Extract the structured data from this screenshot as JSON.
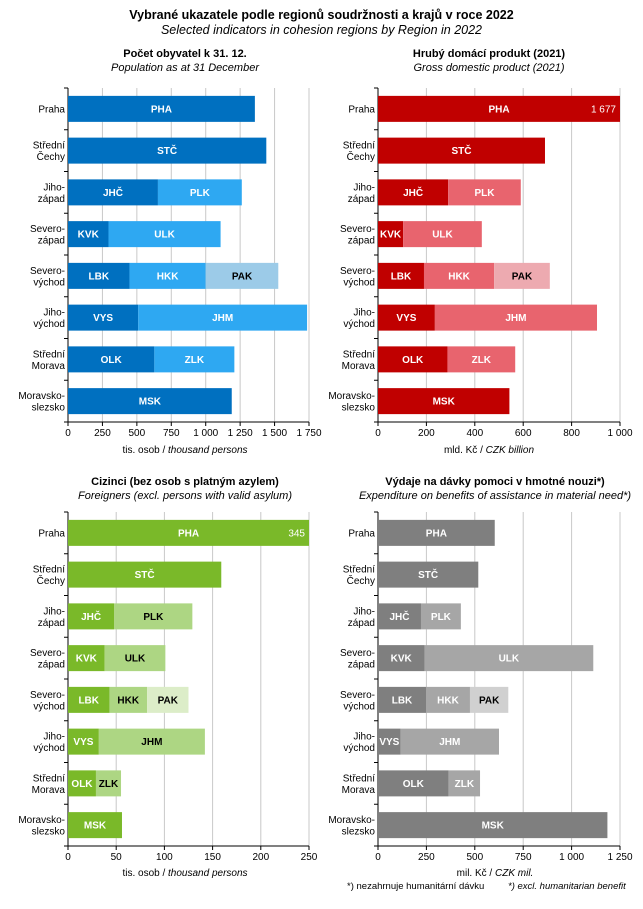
{
  "header": {
    "title": "Vybrané ukazatele podle regionů soudržnosti  a krajů v roce 2022",
    "subtitle": "Selected indicators in cohesion regions  by Region  in 2022"
  },
  "regions": [
    [
      "Praha"
    ],
    [
      "Střední",
      "Čechy"
    ],
    [
      "Jiho-",
      "západ"
    ],
    [
      "Severo-",
      "západ"
    ],
    [
      "Severo-",
      "východ"
    ],
    [
      "Jiho-",
      "východ"
    ],
    [
      "Střední",
      "Morava"
    ],
    [
      "Moravsko-",
      "slezsko"
    ]
  ],
  "chart_data": [
    {
      "type": "bar",
      "orientation": "horizontal-stacked",
      "title": "Počet obyvatel k 31. 12.",
      "subtitle": "Population as at 31 December",
      "xlabel": "tis. osob",
      "xlabel_en": "thousand persons",
      "xlim": [
        0,
        1750
      ],
      "xticks": [
        0,
        250,
        500,
        750,
        1000,
        1250,
        1500,
        1750
      ],
      "xtick_labels": [
        "0",
        "250",
        "500",
        "750",
        "1 000",
        "1 250",
        "1 500",
        "1 750"
      ],
      "colors": [
        "#0070c0",
        "#2ea8f2",
        "#9ccbe8"
      ],
      "light_text_on": [
        2
      ],
      "categories": [
        "Praha",
        "Střední Čechy",
        "Jihozápad",
        "Severozápad",
        "Severovýchod",
        "Jihovýchod",
        "Střední Morava",
        "Moravskoslezsko"
      ],
      "bars": [
        [
          {
            "label": "PHA",
            "value": 1357
          }
        ],
        [
          {
            "label": "STČ",
            "value": 1440
          }
        ],
        [
          {
            "label": "JHČ",
            "value": 653
          },
          {
            "label": "PLK",
            "value": 609
          }
        ],
        [
          {
            "label": "KVK",
            "value": 294
          },
          {
            "label": "ULK",
            "value": 814
          }
        ],
        [
          {
            "label": "LBK",
            "value": 447
          },
          {
            "label": "HKK",
            "value": 553
          },
          {
            "label": "PAK",
            "value": 527
          }
        ],
        [
          {
            "label": "VYS",
            "value": 510
          },
          {
            "label": "JHM",
            "value": 1226
          }
        ],
        [
          {
            "label": "OLK",
            "value": 627
          },
          {
            "label": "ZLK",
            "value": 581
          }
        ],
        [
          {
            "label": "MSK",
            "value": 1189
          }
        ]
      ]
    },
    {
      "type": "bar",
      "orientation": "horizontal-stacked",
      "title": "Hrubý domácí produkt (2021)",
      "subtitle": "Gross domestic product (2021)",
      "xlabel": "mld. Kč",
      "xlabel_en": "CZK billion",
      "xlim": [
        0,
        1000
      ],
      "xticks": [
        0,
        200,
        400,
        600,
        800,
        1000
      ],
      "xtick_labels": [
        "0",
        "200",
        "400",
        "600",
        "800",
        "1 000"
      ],
      "colors": [
        "#c00000",
        "#e8646e",
        "#edaab0"
      ],
      "light_text_on": [
        2
      ],
      "categories": [
        "Praha",
        "Střední Čechy",
        "Jihozápad",
        "Severozápad",
        "Severovýchod",
        "Jihovýchod",
        "Střední Morava",
        "Moravskoslezsko"
      ],
      "bars": [
        [
          {
            "label": "PHA",
            "value": 1677,
            "value_label": "1 677"
          }
        ],
        [
          {
            "label": "STČ",
            "value": 690
          }
        ],
        [
          {
            "label": "JHČ",
            "value": 290
          },
          {
            "label": "PLK",
            "value": 300
          }
        ],
        [
          {
            "label": "KVK",
            "value": 104
          },
          {
            "label": "ULK",
            "value": 325
          }
        ],
        [
          {
            "label": "LBK",
            "value": 190
          },
          {
            "label": "HKK",
            "value": 290
          },
          {
            "label": "PAK",
            "value": 230
          }
        ],
        [
          {
            "label": "VYS",
            "value": 235
          },
          {
            "label": "JHM",
            "value": 670
          }
        ],
        [
          {
            "label": "OLK",
            "value": 287
          },
          {
            "label": "ZLK",
            "value": 280
          }
        ],
        [
          {
            "label": "MSK",
            "value": 543
          }
        ]
      ]
    },
    {
      "type": "bar",
      "orientation": "horizontal-stacked",
      "title": "Cizinci (bez osob s platným azylem)",
      "subtitle": "Foreigners (excl. persons with valid asylum)",
      "xlabel": "tis. osob",
      "xlabel_en": "thousand persons",
      "xlim": [
        0,
        250
      ],
      "xticks": [
        0,
        50,
        100,
        150,
        200,
        250
      ],
      "xtick_labels": [
        "0",
        "50",
        "100",
        "150",
        "200",
        "250"
      ],
      "colors": [
        "#7ab929",
        "#add683",
        "#dcedc8"
      ],
      "light_text_on": [
        1,
        2
      ],
      "categories": [
        "Praha",
        "Střední Čechy",
        "Jihozápad",
        "Severozápad",
        "Severovýchod",
        "Jihovýchod",
        "Střední Morava",
        "Moravskoslezsko"
      ],
      "bars": [
        [
          {
            "label": "PHA",
            "value": 345,
            "value_label": "345"
          }
        ],
        [
          {
            "label": "STČ",
            "value": 159
          }
        ],
        [
          {
            "label": "JHČ",
            "value": 48
          },
          {
            "label": "PLK",
            "value": 81
          }
        ],
        [
          {
            "label": "KVK",
            "value": 38
          },
          {
            "label": "ULK",
            "value": 63
          }
        ],
        [
          {
            "label": "LBK",
            "value": 43
          },
          {
            "label": "HKK",
            "value": 39
          },
          {
            "label": "PAK",
            "value": 43
          }
        ],
        [
          {
            "label": "VYS",
            "value": 32
          },
          {
            "label": "JHM",
            "value": 110
          }
        ],
        [
          {
            "label": "OLK",
            "value": 29
          },
          {
            "label": "ZLK",
            "value": 26
          }
        ],
        [
          {
            "label": "MSK",
            "value": 56
          }
        ]
      ]
    },
    {
      "type": "bar",
      "orientation": "horizontal-stacked",
      "title": "Výdaje na dávky pomoci v hmotné nouzi*)",
      "subtitle": "Expenditure on benefits of assistance in material need*)",
      "xlabel": "mil. Kč",
      "xlabel_en": "CZK mil.",
      "xlim": [
        0,
        1250
      ],
      "xticks": [
        0,
        250,
        500,
        750,
        1000,
        1250
      ],
      "xtick_labels": [
        "0",
        "250",
        "500",
        "750",
        "1 000",
        "1 250"
      ],
      "colors": [
        "#7f7f7f",
        "#a6a6a6",
        "#d0d0d0"
      ],
      "light_text_on": [
        2
      ],
      "categories": [
        "Praha",
        "Střední Čechy",
        "Jihozápad",
        "Severozápad",
        "Severovýchod",
        "Jihovýchod",
        "Střední Morava",
        "Moravskoslezsko"
      ],
      "bars": [
        [
          {
            "label": "PHA",
            "value": 603
          }
        ],
        [
          {
            "label": "STČ",
            "value": 518
          }
        ],
        [
          {
            "label": "JHČ",
            "value": 222
          },
          {
            "label": "PLK",
            "value": 206
          }
        ],
        [
          {
            "label": "KVK",
            "value": 240
          },
          {
            "label": "ULK",
            "value": 872
          }
        ],
        [
          {
            "label": "LBK",
            "value": 248
          },
          {
            "label": "HKK",
            "value": 227
          },
          {
            "label": "PAK",
            "value": 198
          }
        ],
        [
          {
            "label": "VYS",
            "value": 117
          },
          {
            "label": "JHM",
            "value": 508
          }
        ],
        [
          {
            "label": "OLK",
            "value": 365
          },
          {
            "label": "ZLK",
            "value": 162
          }
        ],
        [
          {
            "label": "MSK",
            "value": 1185
          }
        ]
      ]
    }
  ],
  "footnote": {
    "cz": "*) nezahrnuje humanitární dávku",
    "en": "*) excl. humanitarian benefit"
  }
}
